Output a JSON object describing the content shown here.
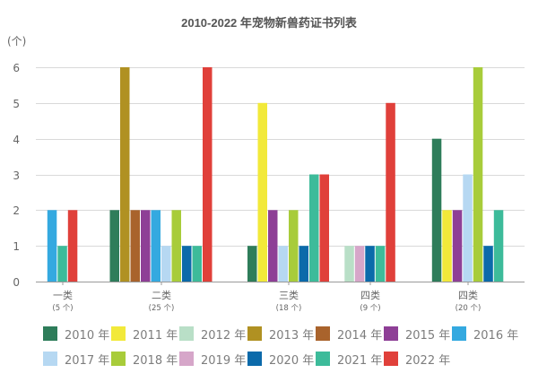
{
  "chart_data": {
    "type": "bar",
    "title": "2010-2022 年宠物新兽药证书列表",
    "unit_label": "(个)",
    "ylim": [
      0,
      6
    ],
    "yticks": [
      0,
      1,
      2,
      3,
      4,
      5,
      6
    ],
    "grid": true,
    "legend_position": "bottom",
    "categories": [
      {
        "name": "一类",
        "sub": "(5 个)"
      },
      {
        "name": "二类",
        "sub": "(25 个)"
      },
      {
        "name": "三类",
        "sub": "(18 个)"
      },
      {
        "name": "四类",
        "sub": "(9 个)"
      },
      {
        "name": "四类",
        "sub": "(20 个)"
      }
    ],
    "series": [
      {
        "name": "2010 年",
        "color": "#2e7d5a",
        "values": [
          0,
          2,
          1,
          0,
          4
        ]
      },
      {
        "name": "2011 年",
        "color": "#f2e93a",
        "values": [
          0,
          0,
          5,
          0,
          2
        ]
      },
      {
        "name": "2012 年",
        "color": "#b9dfc7",
        "values": [
          0,
          0,
          0,
          1,
          0
        ]
      },
      {
        "name": "2013 年",
        "color": "#b09122",
        "values": [
          0,
          6,
          0,
          0,
          0
        ]
      },
      {
        "name": "2014 年",
        "color": "#a9632c",
        "values": [
          0,
          2,
          0,
          0,
          0
        ]
      },
      {
        "name": "2015 年",
        "color": "#8e3f96",
        "values": [
          0,
          2,
          2,
          0,
          2
        ]
      },
      {
        "name": "2016 年",
        "color": "#34a9e0",
        "values": [
          2,
          2,
          0,
          0,
          0
        ]
      },
      {
        "name": "2017 年",
        "color": "#b6d8f2",
        "values": [
          0,
          1,
          1,
          0,
          3
        ]
      },
      {
        "name": "2018 年",
        "color": "#a8cc3a",
        "values": [
          0,
          2,
          2,
          0,
          6
        ]
      },
      {
        "name": "2019 年",
        "color": "#d6a6c9",
        "values": [
          0,
          0,
          0,
          1,
          0
        ]
      },
      {
        "name": "2020 年",
        "color": "#0b6aaa",
        "values": [
          0,
          1,
          1,
          1,
          1
        ]
      },
      {
        "name": "2021 年",
        "color": "#3dbb9a",
        "values": [
          1,
          1,
          3,
          1,
          2
        ]
      },
      {
        "name": "2022 年",
        "color": "#e0403a",
        "values": [
          2,
          6,
          3,
          5,
          0
        ]
      }
    ]
  }
}
